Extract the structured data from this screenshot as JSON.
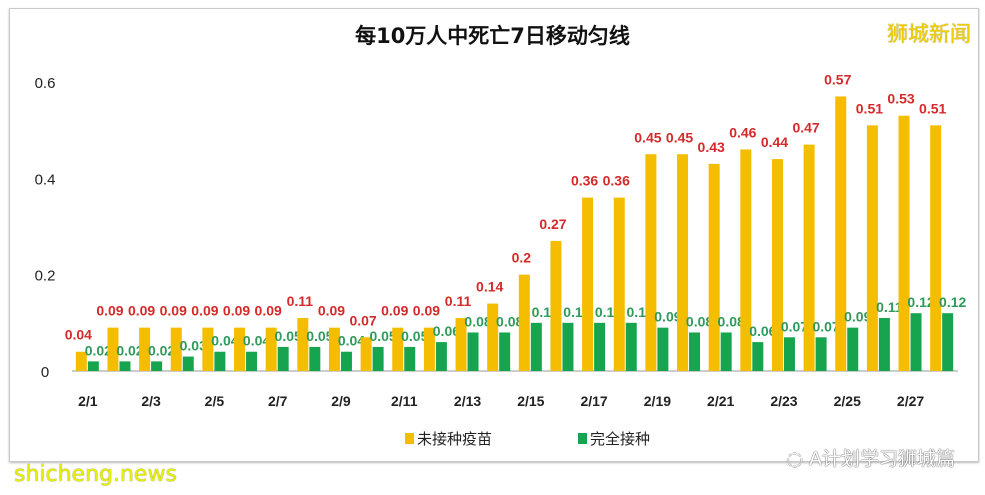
{
  "brand": "狮城新闻",
  "watermark": "shicheng.news",
  "wechat_source": "A计划学习狮城篇",
  "chart_data": {
    "type": "bar",
    "title": "每10万人中死亡7日移动匀线",
    "categories": [
      "2/1",
      "2/2",
      "2/3",
      "2/4",
      "2/5",
      "2/6",
      "2/7",
      "2/8",
      "2/9",
      "2/10",
      "2/11",
      "2/12",
      "2/13",
      "2/14",
      "2/15",
      "2/16",
      "2/17",
      "2/18",
      "2/19",
      "2/20",
      "2/21",
      "2/22",
      "2/23",
      "2/24",
      "2/25",
      "2/26",
      "2/27",
      "2/28"
    ],
    "tick_labels": [
      "2/1",
      "2/3",
      "2/5",
      "2/7",
      "2/9",
      "2/11",
      "2/13",
      "2/15",
      "2/17",
      "2/19",
      "2/21",
      "2/23",
      "2/25",
      "2/27"
    ],
    "series": [
      {
        "name": "未接种疫苗",
        "color": "#f5bd00",
        "label_color": "#d42a2a",
        "values": [
          0.04,
          0.09,
          0.09,
          0.09,
          0.09,
          0.09,
          0.09,
          0.11,
          0.09,
          0.07,
          0.09,
          0.09,
          0.11,
          0.14,
          0.2,
          0.27,
          0.36,
          0.36,
          0.45,
          0.45,
          0.43,
          0.46,
          0.44,
          0.47,
          0.57,
          0.51,
          0.53,
          0.51
        ]
      },
      {
        "name": "完全接种",
        "color": "#16a54e",
        "label_color": "#2f9a5a",
        "values": [
          0.02,
          0.02,
          0.02,
          0.03,
          0.04,
          0.04,
          0.05,
          0.05,
          0.04,
          0.05,
          0.05,
          0.06,
          0.08,
          0.08,
          0.1,
          0.1,
          0.1,
          0.1,
          0.09,
          0.08,
          0.08,
          0.06,
          0.07,
          0.07,
          0.09,
          0.11,
          0.12,
          0.12
        ]
      }
    ],
    "yticks": [
      "0",
      "0.2",
      "0.4",
      "0.6"
    ],
    "ylim": [
      0,
      0.6
    ],
    "grid": false,
    "legend": "bottom"
  }
}
